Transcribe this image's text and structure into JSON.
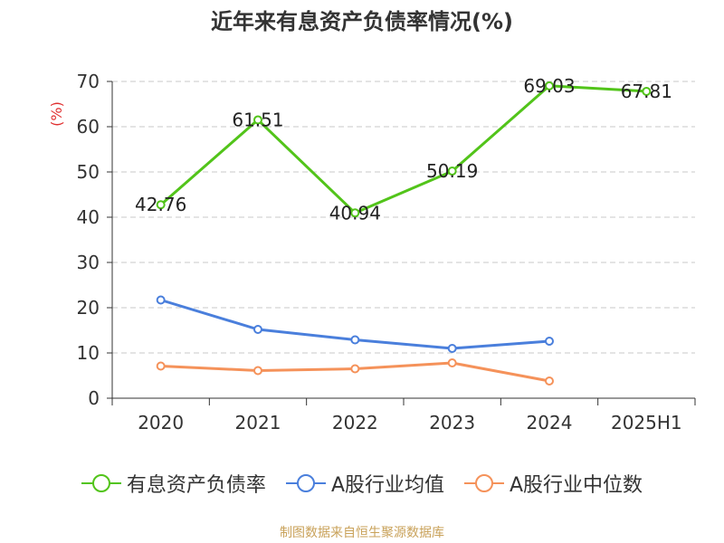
{
  "chart_data": {
    "type": "line",
    "title": "近年来有息资产负债率情况(%)",
    "ylabel": "(%)",
    "xlabel": "",
    "categories": [
      "2020",
      "2021",
      "2022",
      "2023",
      "2024",
      "2025H1"
    ],
    "ylim": [
      0,
      70
    ],
    "yticks": [
      "0",
      "10",
      "20",
      "30",
      "40",
      "50",
      "60",
      "70"
    ],
    "grid": true,
    "legend_position": "bottom",
    "series": [
      {
        "name": "有息资产负债率",
        "color": "#52c41a",
        "values": [
          42.76,
          61.51,
          40.94,
          50.19,
          69.03,
          67.81
        ],
        "labels": [
          "42.76",
          "61.51",
          "40.94",
          "50.19",
          "69.03",
          "67.81"
        ]
      },
      {
        "name": "A股行业均值",
        "color": "#4a7fdc",
        "values": [
          21.7,
          15.2,
          12.9,
          11.0,
          12.6,
          null
        ]
      },
      {
        "name": "A股行业中位数",
        "color": "#f5925a",
        "values": [
          7.1,
          6.1,
          6.5,
          7.8,
          3.8,
          null
        ]
      }
    ]
  },
  "source": "制图数据来自恒生聚源数据库"
}
